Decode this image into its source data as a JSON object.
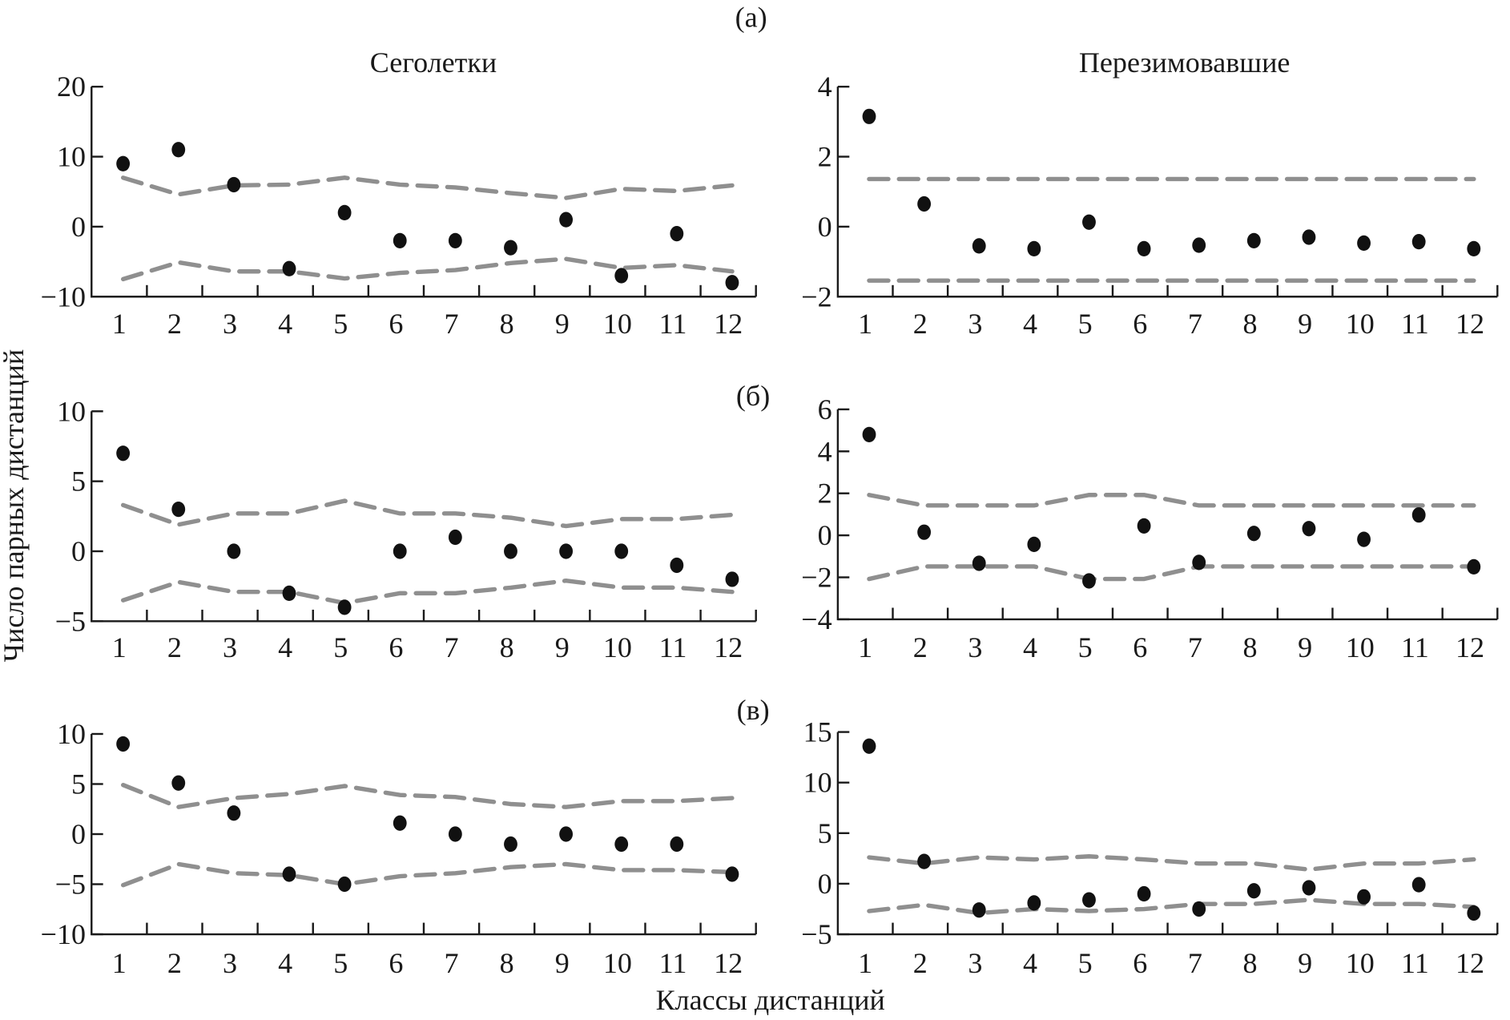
{
  "figure": {
    "panel_labels": [
      "(а)",
      "(б)",
      "(в)"
    ],
    "column_titles": [
      "Сеголетки",
      "Перезимовавшие"
    ],
    "ylabel": "Число парных дистанций",
    "xlabel": "Классы дистанций",
    "colors": {
      "points": "#111111",
      "envelope": "#8f8f8f",
      "axes": "#1a1a1a"
    }
  },
  "chart_data": [
    {
      "type": "scatter",
      "row": "(а)",
      "column": "Сеголетки",
      "categories": [
        "1",
        "2",
        "3",
        "4",
        "5",
        "6",
        "7",
        "8",
        "9",
        "10",
        "11",
        "12"
      ],
      "ylim": [
        -10,
        20
      ],
      "yticks": [
        "−10",
        "0",
        "10",
        "20"
      ],
      "ytick_values": [
        -10,
        0,
        10,
        20
      ],
      "values": [
        9,
        11,
        6,
        -6,
        2,
        -2,
        -2,
        -3,
        1,
        -7,
        -1,
        -8
      ],
      "envelope_upper": [
        7,
        4.6,
        5.9,
        6,
        7,
        6,
        5.6,
        4.8,
        4.1,
        5.4,
        5.1,
        5.9
      ],
      "envelope_lower": [
        -7.5,
        -5.1,
        -6.4,
        -6.4,
        -7.4,
        -6.6,
        -6.2,
        -5.2,
        -4.6,
        -5.9,
        -5.5,
        -6.4
      ],
      "grid": false
    },
    {
      "type": "scatter",
      "row": "(а)",
      "column": "Перезимовавшие",
      "categories": [
        "1",
        "2",
        "3",
        "4",
        "5",
        "6",
        "7",
        "8",
        "9",
        "10",
        "11",
        "12"
      ],
      "ylim": [
        -2,
        4
      ],
      "yticks": [
        "−2",
        "0",
        "2",
        "4"
      ],
      "ytick_values": [
        -2,
        0,
        2,
        4
      ],
      "values": [
        3.15,
        0.65,
        -0.55,
        -0.63,
        0.13,
        -0.63,
        -0.53,
        -0.4,
        -0.3,
        -0.47,
        -0.43,
        -0.63
      ],
      "envelope_upper": [
        1.36,
        1.36,
        1.36,
        1.36,
        1.36,
        1.36,
        1.36,
        1.36,
        1.36,
        1.36,
        1.36,
        1.36
      ],
      "envelope_lower": [
        -1.54,
        -1.54,
        -1.54,
        -1.54,
        -1.54,
        -1.54,
        -1.54,
        -1.54,
        -1.54,
        -1.54,
        -1.54,
        -1.54
      ],
      "grid": false
    },
    {
      "type": "scatter",
      "row": "(б)",
      "column": "Сеголетки",
      "categories": [
        "1",
        "2",
        "3",
        "4",
        "5",
        "6",
        "7",
        "8",
        "9",
        "10",
        "11",
        "12"
      ],
      "ylim": [
        -5,
        10
      ],
      "yticks": [
        "−5",
        "0",
        "5",
        "10"
      ],
      "ytick_values": [
        -5,
        0,
        5,
        10
      ],
      "values": [
        7,
        3,
        0,
        -3,
        -4,
        0,
        1,
        0,
        0,
        0,
        -1,
        -2
      ],
      "envelope_upper": [
        3.3,
        1.9,
        2.7,
        2.7,
        3.6,
        2.7,
        2.7,
        2.4,
        1.8,
        2.3,
        2.3,
        2.6
      ],
      "envelope_lower": [
        -3.5,
        -2.2,
        -2.9,
        -2.9,
        -3.7,
        -3,
        -3,
        -2.6,
        -2.1,
        -2.6,
        -2.6,
        -2.9
      ],
      "grid": false
    },
    {
      "type": "scatter",
      "row": "(б)",
      "column": "Перезимовавшие",
      "categories": [
        "1",
        "2",
        "3",
        "4",
        "5",
        "6",
        "7",
        "8",
        "9",
        "10",
        "11",
        "12"
      ],
      "ylim": [
        -4,
        6
      ],
      "yticks": [
        "−4",
        "−2",
        "0",
        "2",
        "4",
        "6"
      ],
      "ytick_values": [
        -4,
        -2,
        0,
        2,
        4,
        6
      ],
      "values": [
        4.8,
        0.15,
        -1.33,
        -0.43,
        -2.17,
        0.45,
        -1.29,
        0.09,
        0.32,
        -0.19,
        0.97,
        -1.5
      ],
      "envelope_upper": [
        1.92,
        1.42,
        1.42,
        1.42,
        1.92,
        1.92,
        1.42,
        1.42,
        1.42,
        1.42,
        1.42,
        1.42
      ],
      "envelope_lower": [
        -2.08,
        -1.48,
        -1.48,
        -1.48,
        -2.08,
        -2.08,
        -1.48,
        -1.48,
        -1.48,
        -1.48,
        -1.48,
        -1.48
      ],
      "grid": false
    },
    {
      "type": "scatter",
      "row": "(в)",
      "column": "Сеголетки",
      "categories": [
        "1",
        "2",
        "3",
        "4",
        "5",
        "6",
        "7",
        "8",
        "9",
        "10",
        "11",
        "12"
      ],
      "ylim": [
        -10,
        10
      ],
      "yticks": [
        "−10",
        "−5",
        "0",
        "5",
        "10"
      ],
      "ytick_values": [
        -10,
        -5,
        0,
        5,
        10
      ],
      "values": [
        9,
        5.1,
        2.1,
        -4,
        -5,
        1.1,
        0,
        -1,
        0,
        -1,
        -1,
        -4
      ],
      "envelope_upper": [
        4.9,
        2.7,
        3.6,
        4,
        4.8,
        3.9,
        3.7,
        3,
        2.7,
        3.3,
        3.3,
        3.6
      ],
      "envelope_lower": [
        -5.1,
        -3,
        -3.9,
        -4.1,
        -5,
        -4.2,
        -3.9,
        -3.3,
        -3,
        -3.6,
        -3.6,
        -3.8
      ],
      "grid": false
    },
    {
      "type": "scatter",
      "row": "(в)",
      "column": "Перезимовавшие",
      "categories": [
        "1",
        "2",
        "3",
        "4",
        "5",
        "6",
        "7",
        "8",
        "9",
        "10",
        "11",
        "12"
      ],
      "ylim": [
        -5,
        15
      ],
      "yticks": [
        "−5",
        "0",
        "5",
        "10",
        "15"
      ],
      "ytick_values": [
        -5,
        0,
        5,
        10,
        15
      ],
      "values": [
        13.6,
        2.2,
        -2.6,
        -1.9,
        -1.6,
        -1,
        -2.5,
        -0.7,
        -0.4,
        -1.3,
        -0.1,
        -2.9
      ],
      "envelope_upper": [
        2.6,
        2,
        2.6,
        2.4,
        2.7,
        2.4,
        2,
        2,
        1.4,
        2,
        2,
        2.4
      ],
      "envelope_lower": [
        -2.7,
        -2.1,
        -2.9,
        -2.5,
        -2.7,
        -2.5,
        -2,
        -2,
        -1.6,
        -2,
        -2,
        -2.3
      ],
      "grid": false
    }
  ]
}
